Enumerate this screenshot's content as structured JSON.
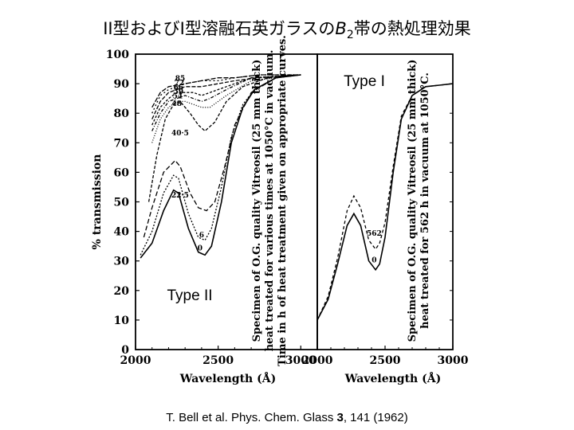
{
  "slide": {
    "title_prefix": "II型およびI型溶融石英ガラスの",
    "title_band": "B",
    "title_band_sub": "2",
    "title_suffix": "帯の熱処理効果"
  },
  "citation": {
    "before": "T. Bell et al. Phys. Chem. Glass ",
    "volume": "3",
    "after": ", 141 (1962)"
  },
  "chart_data": [
    {
      "type": "line",
      "panel": "left",
      "label": "Type II",
      "ylabel": "% transmission",
      "xlabel": "Wavelength (Å)",
      "xlim": [
        2000,
        3100
      ],
      "ylim": [
        0,
        100
      ],
      "xticks": [
        "2000",
        "2500",
        "3000"
      ],
      "yticks": [
        "0",
        "10",
        "20",
        "30",
        "40",
        "50",
        "60",
        "70",
        "80",
        "90",
        "100"
      ],
      "annotation": [
        "Specimen of O.G. quality Vitreosil (25 mm thick)",
        "heat treated for various times at 1050°C in vacuum.",
        "Time in h of heat treatment given on appropriate curves."
      ],
      "series": [
        {
          "name": "0",
          "dash": "solid",
          "x": [
            2030,
            2100,
            2170,
            2230,
            2260,
            2320,
            2380,
            2420,
            2460,
            2520,
            2580,
            2650,
            2720,
            2850,
            3000
          ],
          "y": [
            31,
            36,
            47,
            54,
            53,
            41,
            33,
            32,
            35,
            50,
            70,
            82,
            88,
            92,
            93
          ]
        },
        {
          "name": "6",
          "dash": "2,2",
          "x": [
            2030,
            2100,
            2170,
            2230,
            2260,
            2320,
            2380,
            2420,
            2460,
            2520,
            2580,
            2650,
            2720,
            2850,
            3000
          ],
          "y": [
            32,
            40,
            53,
            59,
            58,
            46,
            38,
            37,
            41,
            55,
            72,
            83,
            88,
            92,
            93
          ]
        },
        {
          "name": "22·5",
          "dash": "6,3",
          "x": [
            2050,
            2100,
            2170,
            2240,
            2270,
            2330,
            2380,
            2430,
            2480,
            2540,
            2600,
            2700,
            2850,
            3000
          ],
          "y": [
            38,
            48,
            60,
            64,
            62,
            53,
            48,
            47,
            50,
            62,
            76,
            87,
            92,
            93
          ]
        },
        {
          "name": "40·5",
          "dash": "4,2",
          "x": [
            2080,
            2130,
            2180,
            2230,
            2270,
            2330,
            2380,
            2420,
            2480,
            2550,
            2650,
            2800,
            3000
          ],
          "y": [
            50,
            66,
            78,
            83,
            84,
            80,
            76,
            74,
            77,
            84,
            89,
            92,
            93
          ]
        },
        {
          "name": "48",
          "dash": "1,2",
          "x": [
            2100,
            2150,
            2200,
            2250,
            2300,
            2350,
            2400,
            2450,
            2550,
            2700,
            3000
          ],
          "y": [
            70,
            78,
            82,
            84,
            84,
            83,
            82,
            82,
            86,
            91,
            93
          ]
        },
        {
          "name": "54",
          "dash": "4,2,1,2",
          "x": [
            2100,
            2150,
            2200,
            2250,
            2300,
            2350,
            2400,
            2450,
            2550,
            2700,
            3000
          ],
          "y": [
            74,
            80,
            84,
            85,
            86,
            85,
            84,
            85,
            88,
            92,
            93
          ]
        },
        {
          "name": "59",
          "dash": "3,2",
          "x": [
            2100,
            2150,
            2200,
            2250,
            2300,
            2350,
            2400,
            2450,
            2550,
            2700,
            3000
          ],
          "y": [
            76,
            82,
            85,
            87,
            87,
            87,
            86,
            87,
            89,
            92,
            93
          ]
        },
        {
          "name": "66",
          "dash": "5,2",
          "x": [
            2100,
            2150,
            2200,
            2250,
            2300,
            2400,
            2500,
            2600,
            2750,
            3000
          ],
          "y": [
            78,
            84,
            87,
            88,
            89,
            89,
            90,
            91,
            92,
            93
          ]
        },
        {
          "name": "72",
          "dash": "2,3",
          "x": [
            2100,
            2150,
            2200,
            2250,
            2300,
            2400,
            2500,
            2600,
            2750,
            3000
          ],
          "y": [
            80,
            86,
            88,
            89,
            90,
            91,
            91,
            92,
            93,
            93
          ]
        },
        {
          "name": "85",
          "dash": "6,2",
          "x": [
            2100,
            2150,
            2200,
            2300,
            2400,
            2500,
            2600,
            2750,
            3000
          ],
          "y": [
            82,
            87,
            89,
            90,
            91,
            92,
            92,
            93,
            93
          ]
        }
      ],
      "curve_labels": [
        {
          "text": "85",
          "x": 2270,
          "y": 91
        },
        {
          "text": "72",
          "x": 2265,
          "y": 89.5
        },
        {
          "text": "66",
          "x": 2260,
          "y": 88
        },
        {
          "text": "59",
          "x": 2260,
          "y": 86.5
        },
        {
          "text": "54",
          "x": 2255,
          "y": 85
        },
        {
          "text": "48",
          "x": 2250,
          "y": 82.5
        },
        {
          "text": "40·5",
          "x": 2270,
          "y": 72.5
        },
        {
          "text": "22·5",
          "x": 2270,
          "y": 51.5
        },
        {
          "text": "6",
          "x": 2400,
          "y": 38
        },
        {
          "text": "0",
          "x": 2390,
          "y": 33.5
        }
      ]
    },
    {
      "type": "line",
      "panel": "right",
      "label": "Type I",
      "xlabel": "Wavelength (Å)",
      "xlim": [
        2000,
        3000
      ],
      "ylim": [
        0,
        100
      ],
      "xticks": [
        "2000",
        "2500",
        "3000"
      ],
      "annotation": [
        "Specimen of O.G. quality Vitreosil (25 mm thick)",
        "heat treated for 562 h in vacuum at 1050°C."
      ],
      "series": [
        {
          "name": "0",
          "dash": "solid",
          "x": [
            2000,
            2080,
            2150,
            2220,
            2270,
            2320,
            2380,
            2430,
            2460,
            2500,
            2560,
            2620,
            2700,
            2800,
            2900,
            3000
          ],
          "y": [
            10,
            17,
            29,
            42,
            46,
            42,
            30,
            27,
            29,
            38,
            60,
            78,
            86,
            89,
            89.5,
            90
          ]
        },
        {
          "name": "562",
          "dash": "4,3",
          "x": [
            2000,
            2080,
            2150,
            2220,
            2270,
            2320,
            2380,
            2430,
            2460,
            2500,
            2560,
            2620,
            2700,
            2800,
            2900,
            3000
          ],
          "y": [
            10,
            18,
            31,
            47,
            52,
            48,
            37,
            34,
            36,
            43,
            62,
            79,
            86,
            89,
            89.5,
            90
          ]
        }
      ],
      "curve_labels": [
        {
          "text": "562",
          "x": 2420,
          "y": 38.5
        },
        {
          "text": "0",
          "x": 2420,
          "y": 29.5
        }
      ]
    }
  ]
}
